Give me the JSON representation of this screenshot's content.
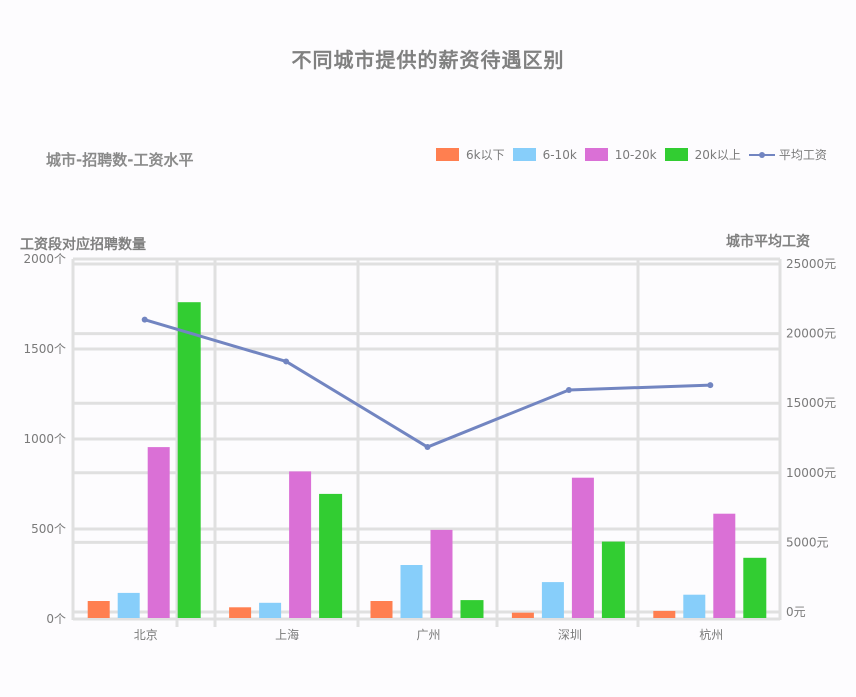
{
  "title": "不同城市提供的薪资待遇区别",
  "subtitle": "城市-招聘数-工资水平",
  "legend": [
    {
      "label": "6k以下",
      "color": "#ff7f50"
    },
    {
      "label": "6-10k",
      "color": "#87cefa"
    },
    {
      "label": "10-20k",
      "color": "#da70d6"
    },
    {
      "label": "20k以上",
      "color": "#32cd32"
    },
    {
      "label": "平均工资",
      "color": "#7285c1",
      "type": "line"
    }
  ],
  "axes": {
    "left_title": "工资段对应招聘数量",
    "right_title": "城市平均工资",
    "left_ticks": [
      "0个",
      "500个",
      "1000个",
      "1500个",
      "2000个"
    ],
    "right_ticks": [
      "0元",
      "5000元",
      "10000元",
      "15000元",
      "20000元",
      "25000元"
    ]
  },
  "chart_data": {
    "type": "bar",
    "title": "不同城市提供的薪资待遇区别",
    "subtitle": "城市-招聘数-工资水平",
    "categories": [
      "北京",
      "上海",
      "广州",
      "深圳",
      "杭州"
    ],
    "xlabel": "",
    "ylabel": "工资段对应招聘数量",
    "ylabel_right": "城市平均工资",
    "ylim": [
      0,
      2000
    ],
    "ylim_right": [
      0,
      25000
    ],
    "grid": true,
    "legend_position": "top-right",
    "series": [
      {
        "name": "6k以下",
        "type": "bar",
        "axis": "left",
        "color": "#ff7f50",
        "values": [
          100,
          65,
          100,
          35,
          45
        ]
      },
      {
        "name": "6-10k",
        "type": "bar",
        "axis": "left",
        "color": "#87cefa",
        "values": [
          145,
          90,
          300,
          205,
          135
        ]
      },
      {
        "name": "10-20k",
        "type": "bar",
        "axis": "left",
        "color": "#da70d6",
        "values": [
          955,
          820,
          495,
          785,
          585
        ]
      },
      {
        "name": "20k以上",
        "type": "bar",
        "axis": "left",
        "color": "#32cd32",
        "values": [
          1760,
          695,
          105,
          430,
          340
        ]
      },
      {
        "name": "平均工资",
        "type": "line",
        "axis": "right",
        "color": "#7285c1",
        "values": [
          21000,
          18000,
          11850,
          15950,
          16300
        ]
      }
    ]
  }
}
